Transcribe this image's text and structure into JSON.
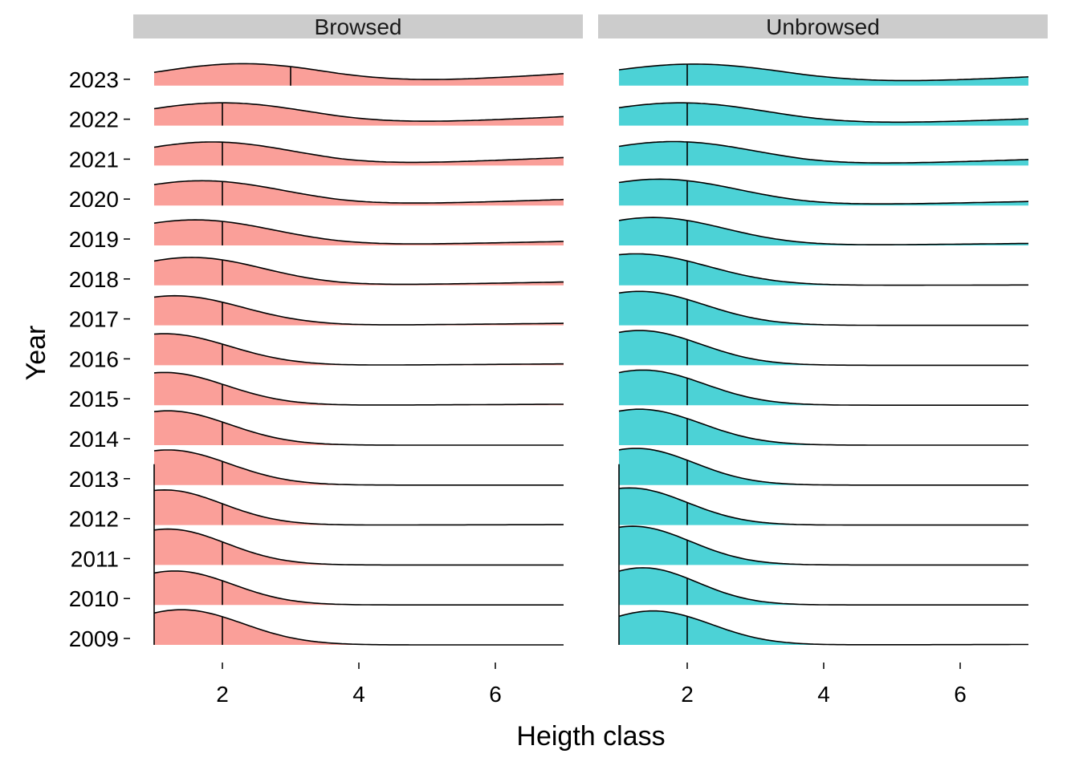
{
  "chart_data": {
    "type": "ridgeline",
    "xlabel": "Heigth class",
    "ylabel": "Year",
    "xlim": [
      1,
      7
    ],
    "x_ticks": [
      2,
      4,
      6
    ],
    "years": [
      "2009",
      "2010",
      "2011",
      "2012",
      "2013",
      "2014",
      "2015",
      "2016",
      "2017",
      "2018",
      "2019",
      "2020",
      "2021",
      "2022",
      "2023"
    ],
    "facets": [
      {
        "name": "Browsed",
        "fill": "#F8766D",
        "medians": [
          2,
          2,
          2,
          2,
          2,
          2,
          2,
          2,
          2,
          2,
          2,
          2,
          2,
          2,
          3
        ],
        "ridges": [
          {
            "year": "2009",
            "mu": 1.4,
            "sd": 0.9,
            "peak": 1.76,
            "tail": 0.0
          },
          {
            "year": "2010",
            "mu": 1.3,
            "sd": 0.85,
            "peak": 1.7,
            "tail": 0.0
          },
          {
            "year": "2011",
            "mu": 1.2,
            "sd": 0.85,
            "peak": 1.8,
            "tail": 0.0
          },
          {
            "year": "2012",
            "mu": 1.15,
            "sd": 0.85,
            "peak": 1.76,
            "tail": 0.02
          },
          {
            "year": "2013",
            "mu": 1.2,
            "sd": 0.9,
            "peak": 1.76,
            "tail": 0.0
          },
          {
            "year": "2014",
            "mu": 1.2,
            "sd": 0.9,
            "peak": 1.72,
            "tail": 0.0
          },
          {
            "year": "2015",
            "mu": 1.15,
            "sd": 0.9,
            "peak": 1.64,
            "tail": 0.05
          },
          {
            "year": "2016",
            "mu": 1.15,
            "sd": 0.95,
            "peak": 1.58,
            "tail": 0.07
          },
          {
            "year": "2017",
            "mu": 1.3,
            "sd": 1.0,
            "peak": 1.48,
            "tail": 0.1
          },
          {
            "year": "2018",
            "mu": 1.55,
            "sd": 1.05,
            "peak": 1.4,
            "tail": 0.17
          },
          {
            "year": "2019",
            "mu": 1.6,
            "sd": 1.15,
            "peak": 1.28,
            "tail": 0.2
          },
          {
            "year": "2020",
            "mu": 1.7,
            "sd": 1.2,
            "peak": 1.24,
            "tail": 0.3
          },
          {
            "year": "2021",
            "mu": 1.85,
            "sd": 1.2,
            "peak": 1.18,
            "tail": 0.4
          },
          {
            "year": "2022",
            "mu": 2.0,
            "sd": 1.3,
            "peak": 1.14,
            "tail": 0.45
          },
          {
            "year": "2023",
            "mu": 2.3,
            "sd": 1.3,
            "peak": 1.1,
            "tail": 0.6
          }
        ]
      },
      {
        "name": "Unbrowsed",
        "fill": "#00BFC4",
        "medians": [
          2,
          2,
          2,
          2,
          2,
          2,
          2,
          2,
          2,
          2,
          2,
          2,
          2,
          2,
          2
        ],
        "ridges": [
          {
            "year": "2009",
            "mu": 1.5,
            "sd": 0.85,
            "peak": 1.7,
            "tail": 0.02
          },
          {
            "year": "2010",
            "mu": 1.35,
            "sd": 0.8,
            "peak": 1.86,
            "tail": 0.0
          },
          {
            "year": "2011",
            "mu": 1.2,
            "sd": 0.85,
            "peak": 1.94,
            "tail": 0.0
          },
          {
            "year": "2012",
            "mu": 1.15,
            "sd": 0.85,
            "peak": 1.86,
            "tail": 0.0
          },
          {
            "year": "2013",
            "mu": 1.25,
            "sd": 0.85,
            "peak": 1.84,
            "tail": 0.0
          },
          {
            "year": "2014",
            "mu": 1.3,
            "sd": 0.9,
            "peak": 1.8,
            "tail": 0.0
          },
          {
            "year": "2015",
            "mu": 1.35,
            "sd": 0.9,
            "peak": 1.76,
            "tail": 0.0
          },
          {
            "year": "2016",
            "mu": 1.3,
            "sd": 0.9,
            "peak": 1.74,
            "tail": 0.0
          },
          {
            "year": "2017",
            "mu": 1.3,
            "sd": 0.95,
            "peak": 1.7,
            "tail": 0.0
          },
          {
            "year": "2018",
            "mu": 1.25,
            "sd": 1.05,
            "peak": 1.58,
            "tail": 0.02
          },
          {
            "year": "2019",
            "mu": 1.5,
            "sd": 1.05,
            "peak": 1.4,
            "tail": 0.1
          },
          {
            "year": "2020",
            "mu": 1.6,
            "sd": 1.15,
            "peak": 1.32,
            "tail": 0.2
          },
          {
            "year": "2021",
            "mu": 1.8,
            "sd": 1.2,
            "peak": 1.2,
            "tail": 0.3
          },
          {
            "year": "2022",
            "mu": 1.9,
            "sd": 1.3,
            "peak": 1.14,
            "tail": 0.34
          },
          {
            "year": "2023",
            "mu": 2.1,
            "sd": 1.4,
            "peak": 1.08,
            "tail": 0.44
          }
        ]
      }
    ],
    "grid": false,
    "legend": "none"
  }
}
